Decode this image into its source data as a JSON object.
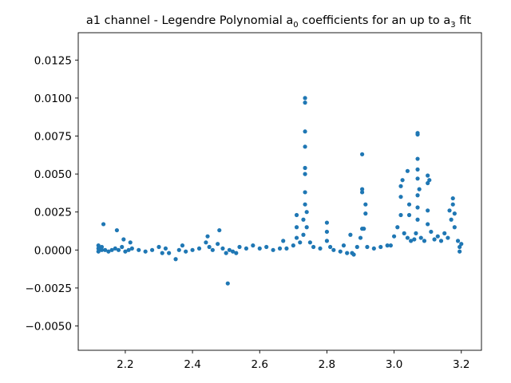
{
  "chart_data": {
    "type": "scatter",
    "title": {
      "main": "a1 channel - Legendre Polynomial a",
      "sub1": "0",
      "mid": " coefficients for an up to a",
      "sub2": "3",
      "tail": " fit"
    },
    "xlabel": "",
    "ylabel": "",
    "xlim": [
      2.06,
      3.26
    ],
    "ylim": [
      -0.0066,
      0.0143
    ],
    "xticks": [
      2.2,
      2.4,
      2.6,
      2.8,
      3.0,
      3.2
    ],
    "xtick_labels": [
      "2.2",
      "2.4",
      "2.6",
      "2.8",
      "3.0",
      "3.2"
    ],
    "yticks": [
      -0.005,
      -0.0025,
      0.0,
      0.0025,
      0.005,
      0.0075,
      0.01,
      0.0125
    ],
    "ytick_labels": [
      "−0.0050",
      "−0.0025",
      "0.0000",
      "0.0025",
      "0.0050",
      "0.0075",
      "0.0100",
      "0.0125"
    ],
    "grid": false,
    "marker_color": "#1f77b4",
    "series": [
      {
        "points": [
          [
            2.12,
            0.0003
          ],
          [
            2.12,
            0.0001
          ],
          [
            2.12,
            -0.0001
          ],
          [
            2.13,
            0.0
          ],
          [
            2.13,
            0.0002
          ],
          [
            2.135,
            0.0017
          ],
          [
            2.14,
            0.0
          ],
          [
            2.15,
            -0.0001
          ],
          [
            2.16,
            0.0
          ],
          [
            2.17,
            0.0001
          ],
          [
            2.175,
            0.0013
          ],
          [
            2.18,
            0.0
          ],
          [
            2.19,
            0.0002
          ],
          [
            2.195,
            0.0007
          ],
          [
            2.2,
            -0.0001
          ],
          [
            2.21,
            0.0
          ],
          [
            2.215,
            0.0005
          ],
          [
            2.22,
            0.0001
          ],
          [
            2.24,
            0.0
          ],
          [
            2.26,
            -0.0001
          ],
          [
            2.28,
            0.0
          ],
          [
            2.3,
            0.0002
          ],
          [
            2.31,
            -0.0002
          ],
          [
            2.32,
            0.0001
          ],
          [
            2.33,
            -0.0002
          ],
          [
            2.35,
            -0.0006
          ],
          [
            2.36,
            0.0
          ],
          [
            2.37,
            0.0003
          ],
          [
            2.38,
            -0.0001
          ],
          [
            2.4,
            0.0
          ],
          [
            2.42,
            0.0001
          ],
          [
            2.44,
            0.0005
          ],
          [
            2.445,
            0.0009
          ],
          [
            2.45,
            0.0002
          ],
          [
            2.46,
            0.0
          ],
          [
            2.475,
            0.0004
          ],
          [
            2.48,
            0.0013
          ],
          [
            2.49,
            0.0001
          ],
          [
            2.5,
            -0.0002
          ],
          [
            2.505,
            -0.0022
          ],
          [
            2.51,
            0.0
          ],
          [
            2.52,
            -0.0001
          ],
          [
            2.53,
            -0.0002
          ],
          [
            2.54,
            0.0002
          ],
          [
            2.56,
            0.0001
          ],
          [
            2.58,
            0.0003
          ],
          [
            2.6,
            0.0001
          ],
          [
            2.62,
            0.0002
          ],
          [
            2.64,
            0.0
          ],
          [
            2.66,
            0.0001
          ],
          [
            2.67,
            0.0006
          ],
          [
            2.68,
            0.0001
          ],
          [
            2.7,
            0.0003
          ],
          [
            2.71,
            0.0008
          ],
          [
            2.71,
            0.0015
          ],
          [
            2.71,
            0.0023
          ],
          [
            2.72,
            0.0005
          ],
          [
            2.73,
            0.001
          ],
          [
            2.73,
            0.002
          ],
          [
            2.735,
            0.003
          ],
          [
            2.735,
            0.0038
          ],
          [
            2.735,
            0.005
          ],
          [
            2.735,
            0.0054
          ],
          [
            2.735,
            0.0068
          ],
          [
            2.735,
            0.0078
          ],
          [
            2.735,
            0.0097
          ],
          [
            2.735,
            0.01
          ],
          [
            2.74,
            0.0025
          ],
          [
            2.74,
            0.0015
          ],
          [
            2.75,
            0.0005
          ],
          [
            2.76,
            0.0002
          ],
          [
            2.78,
            0.0001
          ],
          [
            2.8,
            0.0006
          ],
          [
            2.8,
            0.0012
          ],
          [
            2.8,
            0.0018
          ],
          [
            2.81,
            0.0002
          ],
          [
            2.82,
            0.0
          ],
          [
            2.84,
            -0.0001
          ],
          [
            2.85,
            0.0003
          ],
          [
            2.86,
            -0.0002
          ],
          [
            2.87,
            0.001
          ],
          [
            2.875,
            -0.0002
          ],
          [
            2.88,
            -0.0003
          ],
          [
            2.89,
            0.0002
          ],
          [
            2.9,
            0.0008
          ],
          [
            2.905,
            0.0014
          ],
          [
            2.905,
            0.0038
          ],
          [
            2.905,
            0.004
          ],
          [
            2.905,
            0.0063
          ],
          [
            2.91,
            0.0014
          ],
          [
            2.915,
            0.003
          ],
          [
            2.915,
            0.0024
          ],
          [
            2.92,
            0.0002
          ],
          [
            2.94,
            0.0001
          ],
          [
            2.96,
            0.0002
          ],
          [
            2.98,
            0.0003
          ],
          [
            2.99,
            0.0003
          ],
          [
            3.0,
            0.0009
          ],
          [
            3.01,
            0.0015
          ],
          [
            3.02,
            0.0023
          ],
          [
            3.02,
            0.0035
          ],
          [
            3.02,
            0.0042
          ],
          [
            3.025,
            0.0046
          ],
          [
            3.03,
            0.0011
          ],
          [
            3.04,
            0.0008
          ],
          [
            3.04,
            0.0052
          ],
          [
            3.045,
            0.003
          ],
          [
            3.045,
            0.0023
          ],
          [
            3.05,
            0.0006
          ],
          [
            3.06,
            0.0007
          ],
          [
            3.065,
            0.0011
          ],
          [
            3.07,
            0.002
          ],
          [
            3.07,
            0.0028
          ],
          [
            3.07,
            0.0036
          ],
          [
            3.07,
            0.0047
          ],
          [
            3.07,
            0.0053
          ],
          [
            3.07,
            0.006
          ],
          [
            3.07,
            0.0076
          ],
          [
            3.07,
            0.0077
          ],
          [
            3.075,
            0.004
          ],
          [
            3.08,
            0.0008
          ],
          [
            3.09,
            0.0006
          ],
          [
            3.1,
            0.0017
          ],
          [
            3.1,
            0.0026
          ],
          [
            3.1,
            0.0044
          ],
          [
            3.1,
            0.0049
          ],
          [
            3.105,
            0.0046
          ],
          [
            3.11,
            0.0012
          ],
          [
            3.12,
            0.0007
          ],
          [
            3.13,
            0.0009
          ],
          [
            3.14,
            0.0006
          ],
          [
            3.15,
            0.0011
          ],
          [
            3.16,
            0.0008
          ],
          [
            3.165,
            0.0026
          ],
          [
            3.17,
            0.002
          ],
          [
            3.175,
            0.003
          ],
          [
            3.175,
            0.0034
          ],
          [
            3.18,
            0.0024
          ],
          [
            3.18,
            0.0015
          ],
          [
            3.19,
            0.0006
          ],
          [
            3.195,
            0.0002
          ],
          [
            3.195,
            -0.0001
          ],
          [
            3.2,
            0.0004
          ]
        ]
      }
    ]
  }
}
